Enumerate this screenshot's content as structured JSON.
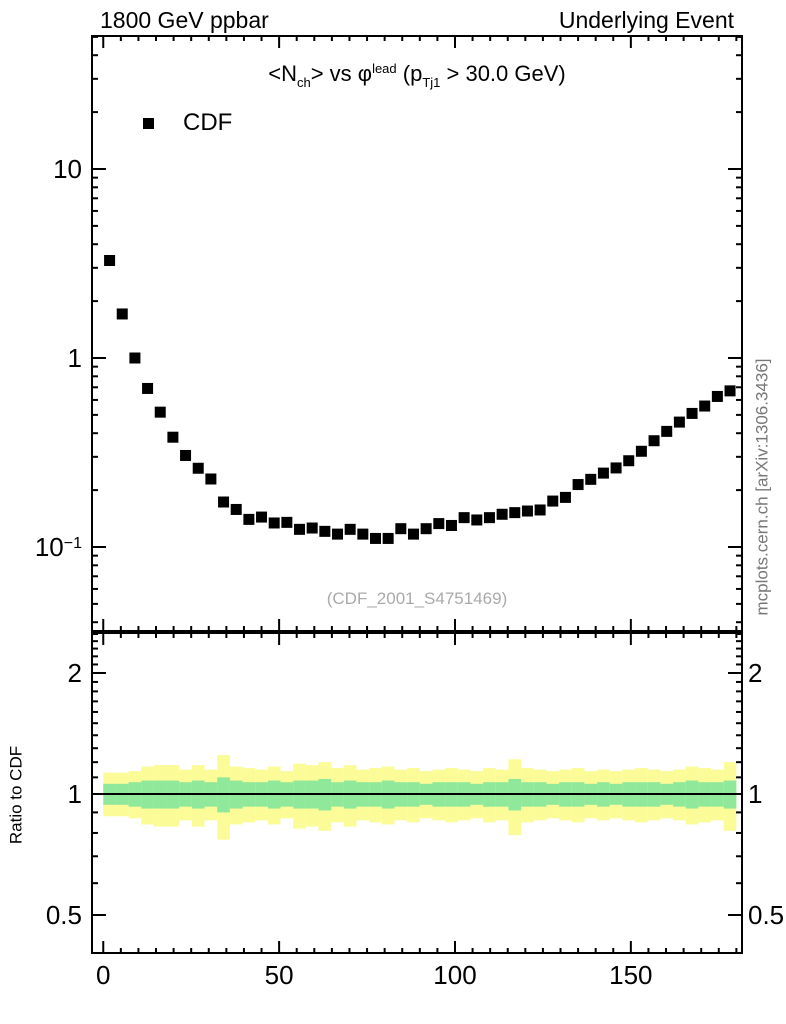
{
  "header": {
    "left": "1800 GeV ppbar",
    "right": "Underlying Event"
  },
  "title_parts": [
    {
      "t": "<N",
      "s": "n"
    },
    {
      "t": "ch",
      "s": "sub"
    },
    {
      "t": "> vs ",
      "s": "n"
    },
    {
      "t": "φ",
      "s": "n"
    },
    {
      "t": "lead",
      "s": "sup"
    },
    {
      "t": " (p",
      "s": "n"
    },
    {
      "t": "Tj1",
      "s": "sub"
    },
    {
      "t": " > 30.0 GeV)",
      "s": "n"
    }
  ],
  "legend": {
    "items": [
      {
        "label": "CDF",
        "marker": "filled-square-icon",
        "color": "#000000"
      }
    ]
  },
  "watermark": "(CDF_2001_S4751469)",
  "credit": "mcplots.cern.ch [arXiv:1306.3436]",
  "chart_data": {
    "type": "scatter",
    "title": "<N_ch> vs phi^lead (p_Tj1 > 30.0 GeV)",
    "top_left_label": "1800 GeV ppbar",
    "top_right_label": "Underlying Event",
    "x_axis": {
      "min": -3.2,
      "max": 181.6,
      "major_ticks": [
        0,
        50,
        100,
        150
      ],
      "tick_labels": [
        "0",
        "50",
        "100",
        "150"
      ],
      "minor_step": 5,
      "grid": false
    },
    "y_axis": {
      "scale": "log",
      "min": 0.036,
      "max": 50.5,
      "labels": [
        {
          "v": 10,
          "base": "10",
          "sup": ""
        },
        {
          "v": 1,
          "base": "1",
          "sup": ""
        },
        {
          "v": 0.1,
          "base": "10",
          "sup": "−1"
        }
      ]
    },
    "ratio_axis": {
      "scale": "log",
      "min": 0.4,
      "max": 2.5,
      "ylabel": "Ratio to CDF",
      "reference": 1,
      "labels": [
        {
          "v": 2,
          "t": "2"
        },
        {
          "v": 1,
          "t": "1"
        },
        {
          "v": 0.5,
          "t": "0.5"
        }
      ],
      "minor_ticks": [
        0.4,
        0.6,
        0.7,
        0.8,
        0.9,
        1.1,
        1.2,
        1.3,
        1.4,
        1.5,
        1.6,
        1.7,
        1.8,
        1.9,
        2.1,
        2.2,
        2.3,
        2.4,
        2.5
      ]
    },
    "series": [
      {
        "name": "CDF",
        "marker": "filled-square",
        "color": "#000000",
        "x": [
          1.8,
          5.4,
          9.0,
          12.6,
          16.2,
          19.8,
          23.4,
          27.0,
          30.6,
          34.2,
          37.8,
          41.4,
          45.0,
          48.6,
          52.2,
          55.8,
          59.4,
          63.0,
          66.6,
          70.2,
          73.8,
          77.4,
          81.0,
          84.6,
          88.2,
          91.8,
          95.4,
          99.0,
          102.6,
          106.2,
          109.8,
          113.4,
          117.0,
          120.6,
          124.2,
          127.8,
          131.4,
          135.0,
          138.6,
          142.2,
          145.8,
          149.4,
          153.0,
          156.6,
          160.2,
          163.8,
          167.4,
          171.0,
          174.6,
          178.2
        ],
        "y": [
          3.28,
          1.71,
          1.0,
          0.69,
          0.517,
          0.381,
          0.305,
          0.261,
          0.229,
          0.173,
          0.158,
          0.14,
          0.144,
          0.134,
          0.135,
          0.124,
          0.126,
          0.121,
          0.117,
          0.124,
          0.117,
          0.111,
          0.111,
          0.125,
          0.117,
          0.125,
          0.133,
          0.13,
          0.143,
          0.139,
          0.143,
          0.149,
          0.152,
          0.155,
          0.157,
          0.175,
          0.183,
          0.214,
          0.228,
          0.246,
          0.262,
          0.286,
          0.321,
          0.365,
          0.409,
          0.458,
          0.509,
          0.557,
          0.626,
          0.67
        ]
      }
    ],
    "bands": {
      "bin_width": 3.6,
      "yellow": {
        "color": "#fbfb98",
        "hi": [
          1.13,
          1.13,
          1.14,
          1.17,
          1.18,
          1.18,
          1.15,
          1.18,
          1.15,
          1.25,
          1.17,
          1.16,
          1.15,
          1.17,
          1.14,
          1.19,
          1.18,
          1.2,
          1.16,
          1.18,
          1.15,
          1.16,
          1.17,
          1.15,
          1.16,
          1.14,
          1.15,
          1.16,
          1.15,
          1.14,
          1.16,
          1.15,
          1.22,
          1.16,
          1.15,
          1.14,
          1.15,
          1.16,
          1.14,
          1.15,
          1.14,
          1.15,
          1.16,
          1.15,
          1.14,
          1.15,
          1.17,
          1.16,
          1.15,
          1.2
        ],
        "lo": [
          0.88,
          0.88,
          0.87,
          0.84,
          0.83,
          0.83,
          0.86,
          0.83,
          0.86,
          0.77,
          0.84,
          0.85,
          0.86,
          0.84,
          0.87,
          0.82,
          0.83,
          0.81,
          0.85,
          0.83,
          0.86,
          0.85,
          0.84,
          0.86,
          0.85,
          0.87,
          0.86,
          0.85,
          0.86,
          0.87,
          0.85,
          0.86,
          0.79,
          0.85,
          0.86,
          0.87,
          0.86,
          0.85,
          0.87,
          0.86,
          0.87,
          0.86,
          0.85,
          0.86,
          0.87,
          0.86,
          0.84,
          0.85,
          0.86,
          0.81
        ]
      },
      "green": {
        "color": "#90e89b",
        "hi": [
          1.06,
          1.06,
          1.07,
          1.08,
          1.08,
          1.08,
          1.07,
          1.08,
          1.07,
          1.1,
          1.08,
          1.07,
          1.07,
          1.08,
          1.07,
          1.08,
          1.08,
          1.09,
          1.07,
          1.08,
          1.07,
          1.07,
          1.08,
          1.07,
          1.07,
          1.06,
          1.07,
          1.07,
          1.07,
          1.06,
          1.07,
          1.07,
          1.09,
          1.07,
          1.07,
          1.06,
          1.07,
          1.07,
          1.06,
          1.07,
          1.06,
          1.07,
          1.07,
          1.07,
          1.06,
          1.07,
          1.08,
          1.07,
          1.07,
          1.08
        ],
        "lo": [
          0.94,
          0.94,
          0.93,
          0.92,
          0.92,
          0.92,
          0.93,
          0.92,
          0.93,
          0.9,
          0.92,
          0.93,
          0.93,
          0.92,
          0.93,
          0.92,
          0.92,
          0.91,
          0.93,
          0.92,
          0.93,
          0.93,
          0.92,
          0.93,
          0.93,
          0.94,
          0.93,
          0.93,
          0.93,
          0.94,
          0.93,
          0.93,
          0.91,
          0.93,
          0.93,
          0.94,
          0.93,
          0.93,
          0.94,
          0.93,
          0.94,
          0.93,
          0.93,
          0.93,
          0.94,
          0.93,
          0.92,
          0.93,
          0.93,
          0.92
        ]
      }
    }
  }
}
